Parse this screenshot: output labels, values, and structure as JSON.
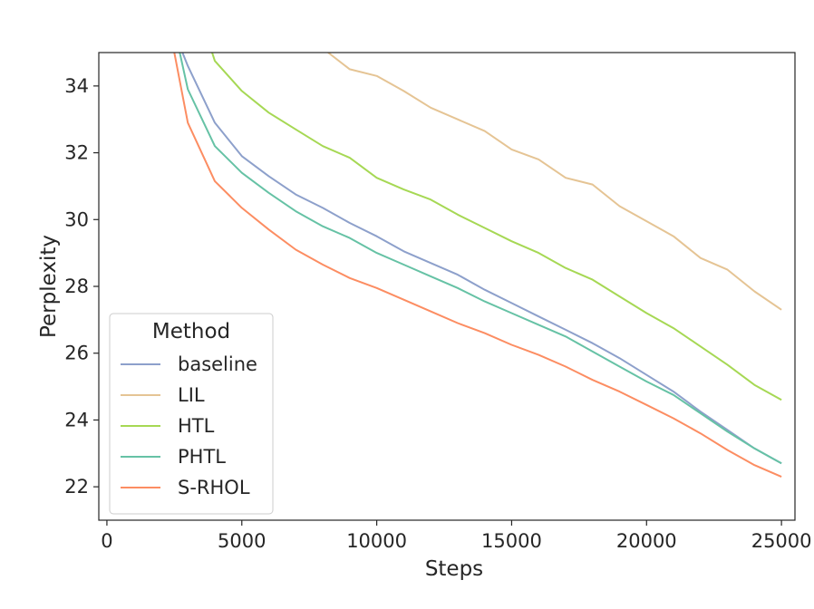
{
  "chart_data": {
    "type": "line",
    "xlabel": "Steps",
    "ylabel": "Perplexity",
    "xlim": [
      -300,
      25500
    ],
    "ylim": [
      21.0,
      35.0
    ],
    "xticks": [
      0,
      5000,
      10000,
      15000,
      20000,
      25000
    ],
    "yticks": [
      22,
      24,
      26,
      28,
      30,
      32,
      34
    ],
    "grid": false,
    "legend": {
      "title": "Method",
      "placement": "lower-left"
    },
    "series": [
      {
        "name": "baseline",
        "color": "#8da0cb",
        "x": [
          2800,
          3000,
          4000,
          5000,
          6000,
          7000,
          8000,
          9000,
          10000,
          11000,
          12000,
          13000,
          14000,
          15000,
          16000,
          17000,
          18000,
          19000,
          20000,
          21000,
          22000,
          23000,
          24000,
          25000
        ],
        "y": [
          35.0,
          34.6,
          32.9,
          31.9,
          31.3,
          30.75,
          30.35,
          29.9,
          29.5,
          29.05,
          28.7,
          28.35,
          27.9,
          27.5,
          27.1,
          26.7,
          26.3,
          25.85,
          25.35,
          24.85,
          24.25,
          23.7,
          23.15,
          22.7
        ]
      },
      {
        "name": "LIL",
        "color": "#e5c494",
        "x": [
          8200,
          9000,
          10000,
          11000,
          12000,
          13000,
          14000,
          15000,
          16000,
          17000,
          18000,
          19000,
          20000,
          21000,
          22000,
          23000,
          24000,
          25000
        ],
        "y": [
          35.0,
          34.5,
          34.3,
          33.85,
          33.35,
          33.0,
          32.65,
          32.1,
          31.8,
          31.25,
          31.05,
          30.4,
          29.95,
          29.5,
          28.85,
          28.5,
          27.85,
          27.3
        ]
      },
      {
        "name": "HTL",
        "color": "#a6d854",
        "x": [
          3900,
          4000,
          5000,
          6000,
          7000,
          8000,
          9000,
          10000,
          11000,
          12000,
          13000,
          14000,
          15000,
          16000,
          17000,
          18000,
          19000,
          20000,
          21000,
          22000,
          23000,
          24000,
          25000
        ],
        "y": [
          35.0,
          34.75,
          33.85,
          33.2,
          32.7,
          32.2,
          31.85,
          31.25,
          30.9,
          30.6,
          30.15,
          29.75,
          29.35,
          29.0,
          28.55,
          28.2,
          27.7,
          27.2,
          26.75,
          26.2,
          25.65,
          25.05,
          24.6
        ]
      },
      {
        "name": "PHTL",
        "color": "#66c2a5",
        "x": [
          2700,
          3000,
          4000,
          5000,
          6000,
          7000,
          8000,
          9000,
          10000,
          11000,
          12000,
          13000,
          14000,
          15000,
          16000,
          17000,
          18000,
          19000,
          20000,
          21000,
          22000,
          23000,
          24000,
          25000
        ],
        "y": [
          35.0,
          33.9,
          32.2,
          31.4,
          30.8,
          30.25,
          29.8,
          29.45,
          29.0,
          28.65,
          28.3,
          27.95,
          27.55,
          27.2,
          26.85,
          26.5,
          26.05,
          25.6,
          25.15,
          24.75,
          24.2,
          23.65,
          23.15,
          22.7
        ]
      },
      {
        "name": "S-RHOL",
        "color": "#fc8d62",
        "x": [
          2500,
          3000,
          4000,
          5000,
          6000,
          7000,
          8000,
          9000,
          10000,
          11000,
          12000,
          13000,
          14000,
          15000,
          16000,
          17000,
          18000,
          19000,
          20000,
          21000,
          22000,
          23000,
          24000,
          25000
        ],
        "y": [
          35.0,
          32.9,
          31.15,
          30.35,
          29.7,
          29.1,
          28.65,
          28.25,
          27.95,
          27.6,
          27.25,
          26.9,
          26.6,
          26.25,
          25.95,
          25.6,
          25.2,
          24.85,
          24.45,
          24.05,
          23.6,
          23.1,
          22.65,
          22.3
        ]
      }
    ]
  }
}
